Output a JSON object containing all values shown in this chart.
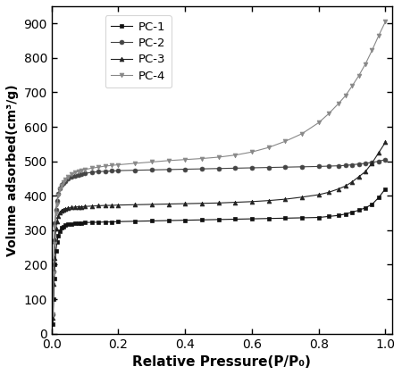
{
  "title": "",
  "xlabel": "Relative Pressure(P/P₀)",
  "ylabel": "Volume adsorbed(cm³/g)",
  "xlim": [
    0,
    1.02
  ],
  "ylim": [
    0,
    950
  ],
  "yticks": [
    0,
    100,
    200,
    300,
    400,
    500,
    600,
    700,
    800,
    900
  ],
  "xticks": [
    0.0,
    0.2,
    0.4,
    0.6,
    0.8,
    1.0
  ],
  "legend_labels": [
    "PC-1",
    "PC-2",
    "PC-3",
    "PC-4"
  ],
  "series_colors": [
    "#111111",
    "#444444",
    "#222222",
    "#888888"
  ],
  "markers": [
    "s",
    "o",
    "^",
    "v"
  ],
  "background_color": "#ffffff",
  "PC1_x": [
    0.004,
    0.006,
    0.008,
    0.01,
    0.013,
    0.016,
    0.02,
    0.025,
    0.03,
    0.035,
    0.04,
    0.05,
    0.06,
    0.07,
    0.08,
    0.09,
    0.1,
    0.12,
    0.14,
    0.16,
    0.18,
    0.2,
    0.25,
    0.3,
    0.35,
    0.4,
    0.45,
    0.5,
    0.55,
    0.6,
    0.65,
    0.7,
    0.75,
    0.8,
    0.83,
    0.86,
    0.88,
    0.9,
    0.92,
    0.94,
    0.96,
    0.98,
    1.0
  ],
  "PC1_y": [
    28,
    100,
    160,
    200,
    240,
    265,
    285,
    298,
    307,
    311,
    314,
    317,
    319,
    320,
    321,
    321,
    322,
    323,
    323,
    324,
    324,
    325,
    326,
    327,
    328,
    329,
    330,
    331,
    332,
    333,
    334,
    335,
    336,
    337,
    340,
    343,
    347,
    352,
    358,
    365,
    375,
    395,
    420
  ],
  "PC2_x": [
    0.004,
    0.006,
    0.008,
    0.01,
    0.013,
    0.016,
    0.02,
    0.025,
    0.03,
    0.035,
    0.04,
    0.05,
    0.06,
    0.07,
    0.08,
    0.09,
    0.1,
    0.12,
    0.14,
    0.16,
    0.18,
    0.2,
    0.25,
    0.3,
    0.35,
    0.4,
    0.45,
    0.5,
    0.55,
    0.6,
    0.65,
    0.7,
    0.75,
    0.8,
    0.83,
    0.86,
    0.88,
    0.9,
    0.92,
    0.94,
    0.96,
    0.98,
    1.0
  ],
  "PC2_y": [
    55,
    180,
    270,
    320,
    360,
    385,
    405,
    422,
    432,
    438,
    443,
    449,
    454,
    458,
    461,
    463,
    465,
    468,
    470,
    471,
    472,
    473,
    474,
    475,
    476,
    477,
    478,
    479,
    480,
    481,
    482,
    483,
    484,
    485,
    486,
    487,
    488,
    490,
    492,
    494,
    497,
    500,
    505
  ],
  "PC3_x": [
    0.004,
    0.006,
    0.008,
    0.01,
    0.013,
    0.016,
    0.02,
    0.025,
    0.03,
    0.035,
    0.04,
    0.05,
    0.06,
    0.07,
    0.08,
    0.09,
    0.1,
    0.12,
    0.14,
    0.16,
    0.18,
    0.2,
    0.25,
    0.3,
    0.35,
    0.4,
    0.45,
    0.5,
    0.55,
    0.6,
    0.65,
    0.7,
    0.75,
    0.8,
    0.83,
    0.86,
    0.88,
    0.9,
    0.92,
    0.94,
    0.96,
    0.98,
    1.0
  ],
  "PC3_y": [
    45,
    145,
    220,
    268,
    305,
    325,
    342,
    352,
    357,
    360,
    362,
    364,
    366,
    367,
    368,
    368,
    369,
    370,
    371,
    372,
    372,
    373,
    374,
    375,
    376,
    377,
    378,
    379,
    381,
    383,
    386,
    390,
    396,
    403,
    410,
    420,
    428,
    440,
    455,
    470,
    495,
    525,
    555
  ],
  "PC4_x": [
    0.004,
    0.006,
    0.008,
    0.01,
    0.013,
    0.016,
    0.02,
    0.025,
    0.03,
    0.035,
    0.04,
    0.05,
    0.06,
    0.07,
    0.08,
    0.09,
    0.1,
    0.12,
    0.14,
    0.16,
    0.18,
    0.2,
    0.25,
    0.3,
    0.35,
    0.4,
    0.45,
    0.5,
    0.55,
    0.6,
    0.65,
    0.7,
    0.75,
    0.8,
    0.83,
    0.86,
    0.88,
    0.9,
    0.92,
    0.94,
    0.96,
    0.98,
    1.0
  ],
  "PC4_y": [
    55,
    175,
    260,
    310,
    350,
    375,
    400,
    418,
    430,
    440,
    447,
    455,
    462,
    467,
    471,
    474,
    476,
    480,
    483,
    486,
    488,
    490,
    494,
    498,
    502,
    505,
    508,
    512,
    518,
    527,
    540,
    558,
    580,
    612,
    638,
    668,
    690,
    718,
    748,
    782,
    822,
    865,
    905
  ]
}
